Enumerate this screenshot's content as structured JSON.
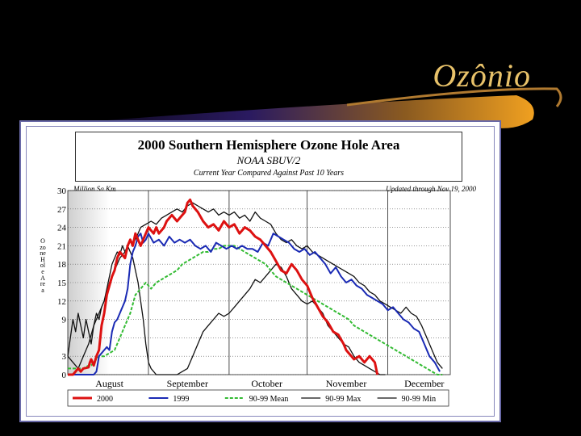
{
  "slide": {
    "title": "Ozônio",
    "accent": "#e8c26a"
  },
  "chart_data": {
    "type": "line",
    "title": "2000 Southern Hemisphere Ozone Hole Area",
    "subtitle": "NOAA SBUV/2",
    "subtitle2": "Current Year Compared Against Past 10 Years",
    "units_label": "Million Sq Km",
    "updated_label": "Updated through Nov 19, 2000",
    "ylabel": "Ozone Hole Area",
    "ylim": [
      0,
      30
    ],
    "yticks": [
      0,
      3,
      6,
      9,
      12,
      15,
      18,
      21,
      24,
      27,
      30
    ],
    "ytick_labels": [
      "0",
      "3",
      "",
      "9",
      "12",
      "15",
      "18",
      "21",
      "24",
      "27",
      "30"
    ],
    "xlim": [
      0,
      147
    ],
    "xtick_labels": [
      {
        "label": "August",
        "x": 16
      },
      {
        "label": "September",
        "x": 46
      },
      {
        "label": "October",
        "x": 76.5
      },
      {
        "label": "November",
        "x": 107
      },
      {
        "label": "December",
        "x": 137
      }
    ],
    "month_boundaries": [
      31,
      62,
      92,
      123
    ],
    "grid": true,
    "legend_position": "bottom",
    "series": [
      {
        "name": "2000",
        "color": "#dd1111",
        "width": 3,
        "dash": "",
        "x": [
          0,
          2,
          4,
          5,
          6,
          8,
          8.5,
          9,
          10,
          11,
          12,
          12.5,
          13,
          14,
          15,
          17,
          18,
          19,
          20,
          22,
          23,
          24,
          25,
          26,
          27,
          28,
          30,
          31,
          33,
          34,
          35,
          37,
          38,
          40,
          42,
          44,
          45,
          46,
          47,
          48,
          50,
          52,
          54,
          56,
          58,
          60,
          62,
          64,
          66,
          68,
          70,
          72,
          74,
          76,
          78,
          80,
          82,
          84,
          86,
          88,
          90,
          92,
          94,
          96,
          98,
          100,
          102,
          104,
          106,
          107,
          108,
          109,
          110,
          112,
          114,
          116,
          118,
          119
        ],
        "y": [
          0,
          0,
          1,
          0.5,
          1,
          1.2,
          2,
          2.5,
          1.5,
          3,
          4,
          6,
          8,
          10,
          13,
          16,
          17,
          19,
          20,
          19,
          21,
          22,
          21,
          23,
          22,
          21,
          23,
          24,
          23,
          24,
          23,
          24,
          25,
          26,
          25,
          26,
          26.5,
          28,
          28.5,
          27.5,
          26.5,
          25,
          24,
          24.5,
          23.5,
          25,
          24,
          24.5,
          23,
          24,
          23.5,
          22.5,
          22,
          21,
          20,
          18.5,
          17,
          16.5,
          18,
          17,
          15.5,
          14.5,
          12.5,
          11,
          9.5,
          8.5,
          7,
          6.5,
          5,
          4,
          3.5,
          3,
          2.5,
          3,
          2,
          3,
          2,
          0
        ]
      },
      {
        "name": "1999",
        "color": "#1a2ab4",
        "width": 2,
        "dash": "",
        "x": [
          0,
          6,
          9,
          10,
          11,
          12,
          14,
          15,
          16,
          17,
          18,
          19,
          20,
          22,
          23,
          24,
          25,
          26,
          27,
          28,
          29,
          30,
          31,
          33,
          35,
          37,
          39,
          41,
          43,
          45,
          47,
          49,
          51,
          53,
          55,
          57,
          59,
          61,
          63,
          65,
          67,
          69,
          71,
          73,
          75,
          77,
          79,
          81,
          83,
          85,
          87,
          89,
          91,
          93,
          95,
          97,
          99,
          101,
          103,
          105,
          107,
          109,
          111,
          113,
          115,
          117,
          119,
          121,
          123,
          125,
          127,
          129,
          131,
          133,
          135,
          137,
          139,
          141,
          143
        ],
        "y": [
          0,
          0,
          0,
          0,
          0.5,
          3,
          4,
          4.5,
          4,
          7,
          8.5,
          9,
          10,
          12,
          14,
          18,
          20,
          21,
          22.5,
          23,
          21.5,
          22,
          23,
          21.5,
          22,
          21,
          22.5,
          21.5,
          22,
          21.5,
          22,
          21,
          20.5,
          21,
          20,
          21.5,
          21,
          20.5,
          21,
          20.5,
          21,
          20.5,
          20.5,
          20,
          21.5,
          21,
          23,
          22.5,
          22,
          21.5,
          20.5,
          20,
          20.5,
          19.5,
          20,
          19,
          18,
          16.5,
          17.5,
          16,
          15,
          15.5,
          14.5,
          14,
          13,
          12.5,
          12,
          11.5,
          10.5,
          11,
          10,
          9,
          8.5,
          7.5,
          7,
          5,
          3,
          2,
          0.5
        ]
      },
      {
        "name": "90-99 Mean",
        "color": "#33bb33",
        "width": 2,
        "dash": "4,2",
        "x": [
          0,
          6,
          8,
          9,
          10,
          11,
          12,
          14,
          16,
          18,
          20,
          22,
          24,
          26,
          28,
          30,
          32,
          34,
          36,
          38,
          40,
          42,
          44,
          46,
          48,
          50,
          52,
          54,
          56,
          58,
          60,
          62,
          64,
          66,
          68,
          70,
          72,
          74,
          76,
          78,
          80,
          82,
          84,
          86,
          88,
          90,
          92,
          94,
          96,
          98,
          100,
          102,
          104,
          106,
          108,
          110,
          112,
          114,
          116,
          118,
          120,
          122,
          124,
          126,
          128,
          130,
          132,
          134,
          136,
          138,
          140,
          142,
          144
        ],
        "y": [
          1,
          1,
          1.5,
          1.5,
          2,
          2.5,
          3,
          3,
          3.5,
          4,
          6,
          8,
          10,
          13,
          14,
          15,
          14,
          15,
          15.5,
          16,
          16.5,
          17,
          18,
          18.5,
          19,
          19.5,
          20,
          20,
          20.5,
          20.5,
          21,
          21,
          21,
          20.5,
          20,
          19.5,
          19,
          18.5,
          18,
          17,
          16,
          15.5,
          15,
          14.5,
          14,
          13.5,
          13,
          12.5,
          12,
          11.5,
          11,
          10.5,
          10,
          9.5,
          9,
          8,
          7.5,
          7,
          6.5,
          6,
          5.5,
          5,
          4.5,
          4,
          3.5,
          3,
          2.5,
          2,
          1.5,
          1,
          0.5,
          0,
          0
        ]
      },
      {
        "name": "90-99 Max",
        "color": "#111111",
        "width": 1.3,
        "dash": "",
        "x": [
          0,
          2,
          4,
          6,
          8,
          10,
          12,
          14,
          16,
          18,
          20,
          22,
          23,
          24,
          25,
          26,
          27,
          28,
          30,
          32,
          34,
          36,
          38,
          40,
          42,
          44,
          46,
          48,
          50,
          52,
          54,
          56,
          58,
          60,
          62,
          64,
          66,
          68,
          70,
          72,
          74,
          76,
          78,
          80,
          82,
          84,
          86,
          88,
          90,
          92,
          94,
          96,
          98,
          100,
          102,
          104,
          106,
          108,
          110,
          112,
          114,
          116,
          118,
          120,
          122,
          124,
          126,
          128,
          130,
          132,
          134,
          136,
          138,
          140,
          142,
          144
        ],
        "y": [
          3,
          2,
          1,
          3,
          5,
          8,
          10,
          12,
          15,
          17,
          19,
          20,
          21,
          22,
          21.5,
          22,
          23,
          24,
          24.5,
          25,
          24.5,
          25.5,
          26,
          26.5,
          27,
          26.5,
          27.5,
          28,
          27.5,
          27,
          26.5,
          27,
          26,
          26.5,
          26,
          26.5,
          25.5,
          26,
          25,
          26.5,
          25.5,
          25,
          24.5,
          23,
          22,
          21.5,
          22,
          21,
          20.5,
          21,
          20,
          19.5,
          19,
          18.5,
          18,
          17.5,
          17,
          16.5,
          16,
          15,
          14.5,
          13.5,
          13,
          12,
          11.5,
          11,
          10.5,
          10,
          11,
          10,
          9.5,
          8,
          6,
          4,
          2,
          1
        ]
      },
      {
        "name": "90-99 Min",
        "color": "#111111",
        "width": 1.3,
        "dash": "",
        "x": [
          0,
          1,
          2,
          3,
          4,
          5,
          6,
          7,
          8,
          9,
          10,
          11,
          12,
          13,
          14,
          15,
          16,
          17,
          18,
          19,
          20,
          21,
          22,
          23,
          24,
          25,
          26,
          27,
          28,
          29,
          30,
          31,
          32,
          33,
          34,
          35,
          36,
          37,
          38,
          40,
          42,
          44,
          46,
          48,
          50,
          52,
          54,
          56,
          58,
          60,
          62,
          64,
          66,
          68,
          70,
          72,
          74,
          76,
          78,
          80,
          82,
          84,
          86,
          88,
          90,
          92,
          94,
          96,
          98,
          100,
          102,
          104,
          106,
          108,
          110,
          112,
          114,
          116,
          118,
          120,
          122
        ],
        "y": [
          3,
          6,
          9,
          7,
          10,
          8,
          6,
          9,
          7,
          5,
          8,
          10,
          9,
          11,
          12,
          14,
          16,
          18,
          19,
          20,
          19.5,
          21,
          20,
          21,
          20,
          19,
          17,
          15,
          12,
          9,
          5,
          2,
          1,
          0.5,
          0,
          0,
          0,
          0,
          0,
          0,
          0,
          0.5,
          1,
          3,
          5,
          7,
          8,
          9,
          10,
          9.5,
          10,
          11,
          12,
          13,
          14,
          15.5,
          15,
          16,
          17,
          18,
          17.5,
          16,
          14,
          13,
          12,
          11.5,
          12,
          11,
          10,
          8,
          7,
          6,
          5,
          4.5,
          3,
          2,
          1.5,
          1,
          0.5,
          0,
          0
        ]
      }
    ]
  }
}
